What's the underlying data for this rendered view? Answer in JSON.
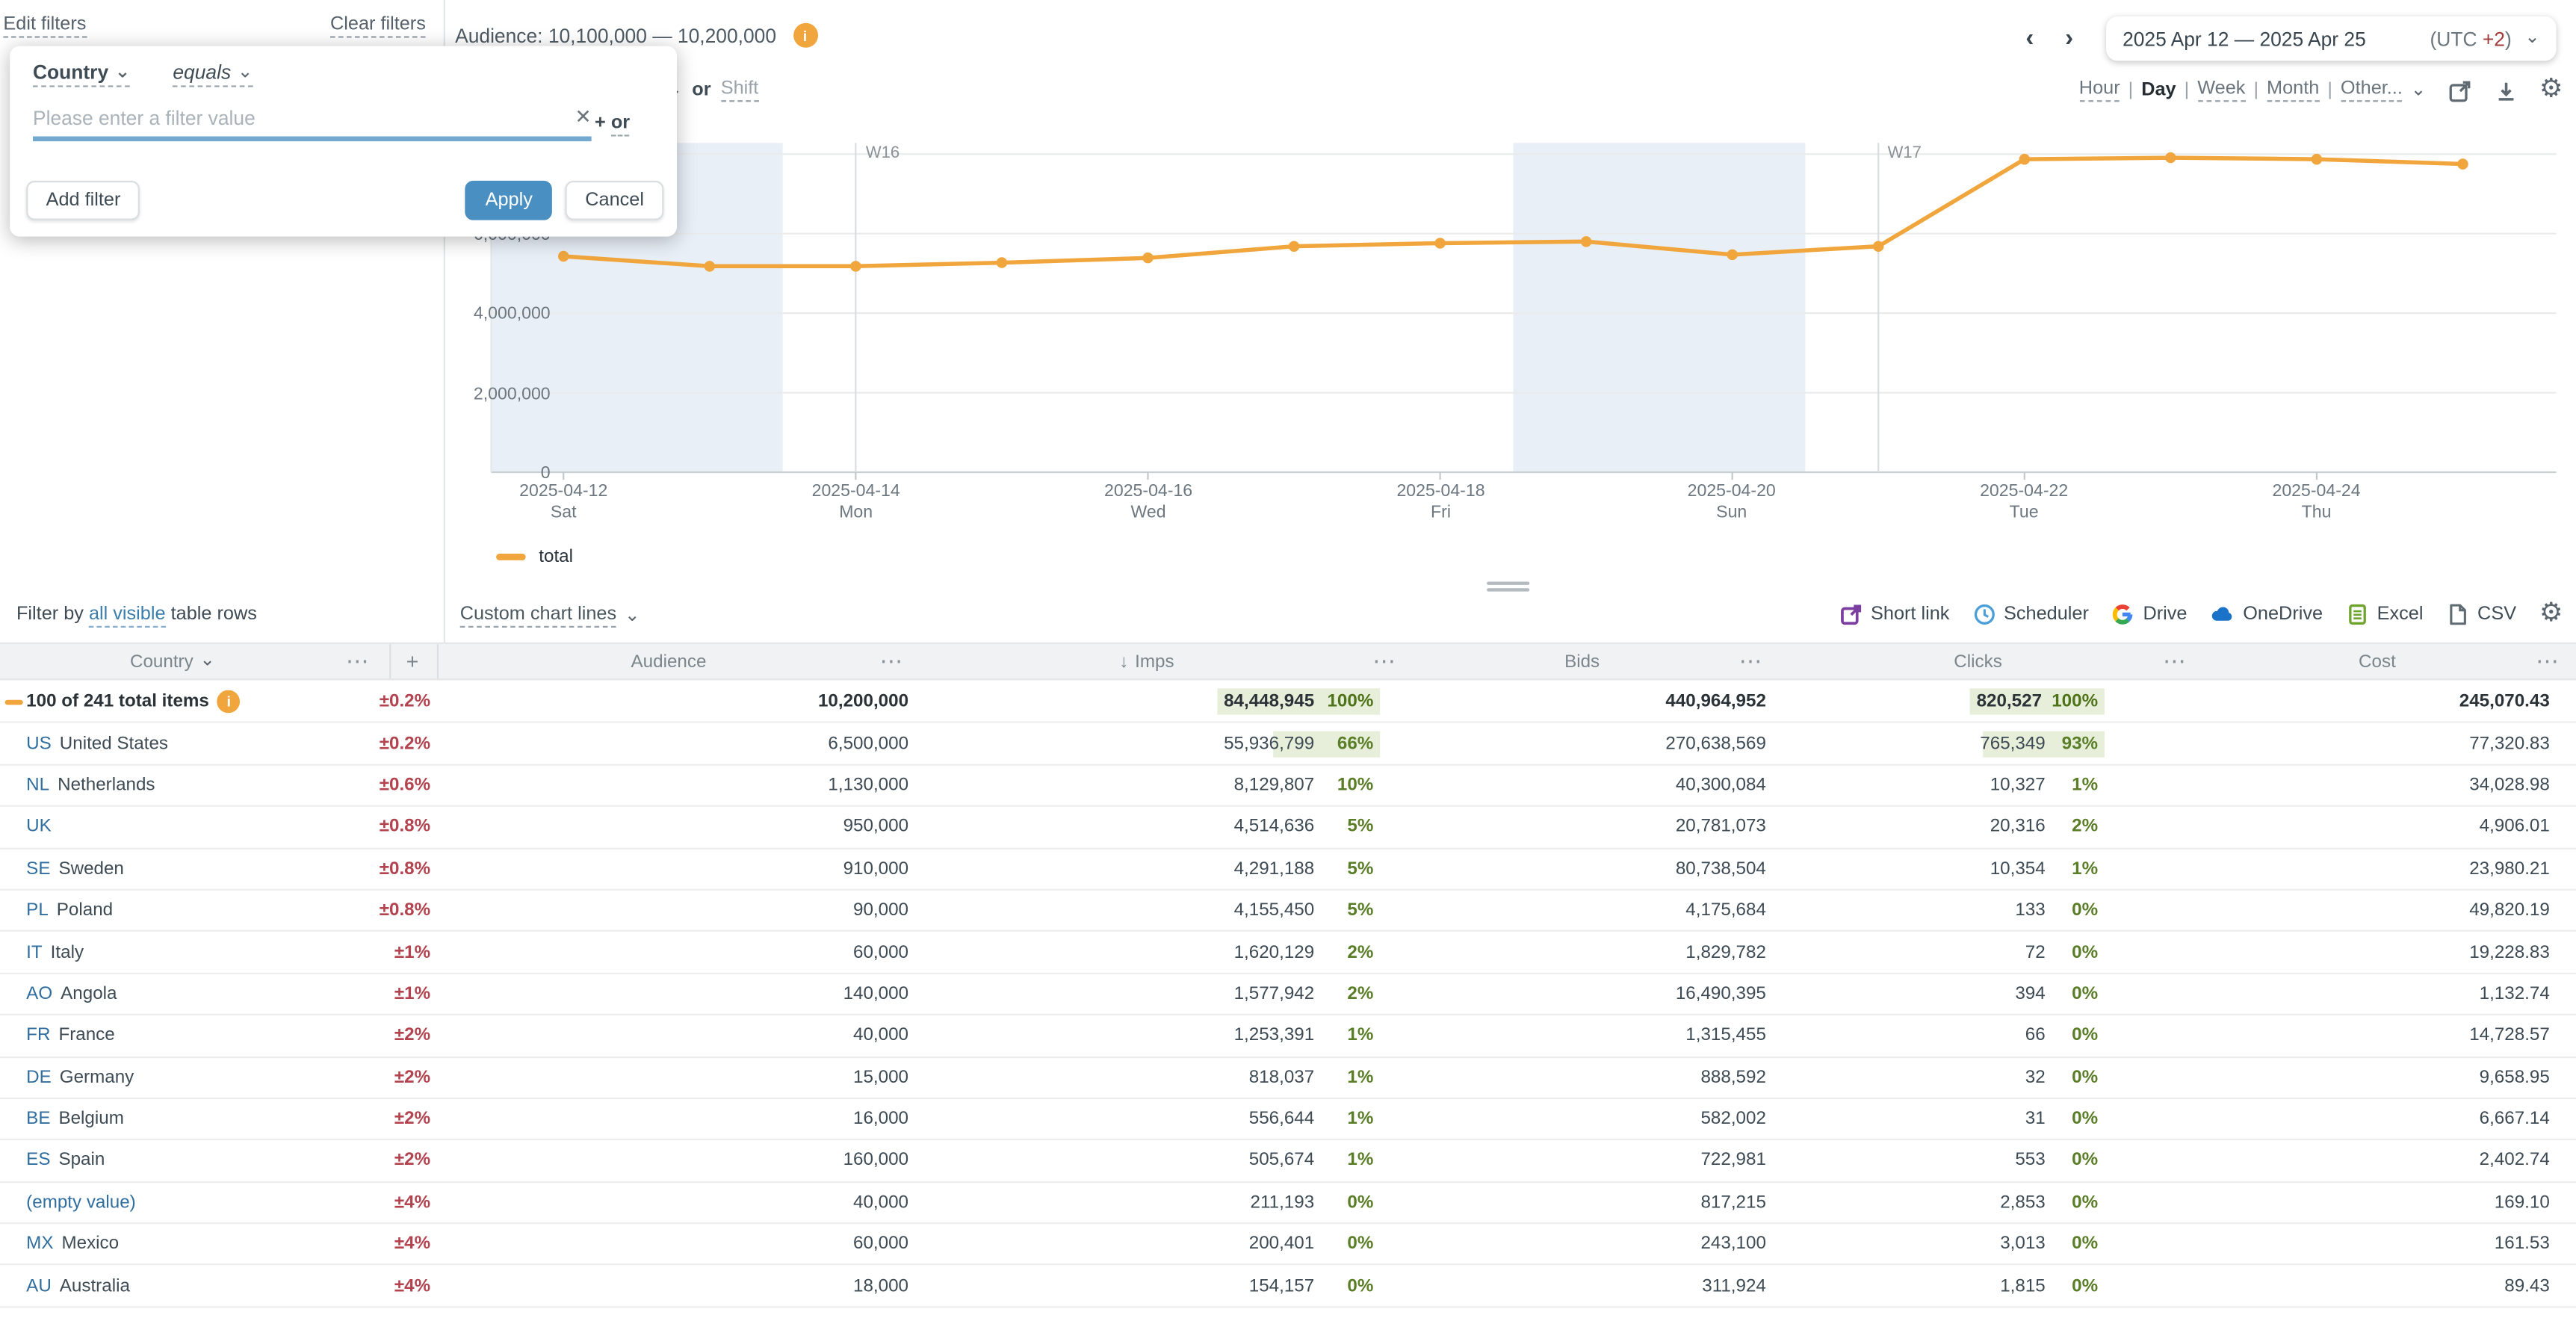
{
  "filter_bar": {
    "edit": "Edit filters",
    "clear": "Clear filters"
  },
  "filter_popup": {
    "field": "Country",
    "operator": "equals",
    "placeholder": "Please enter a filter value",
    "plus_sign": "+",
    "or_word": "or",
    "add": "Add filter",
    "apply": "Apply",
    "cancel": "Cancel",
    "fragment_or": "or",
    "fragment_shift": "Shift"
  },
  "chart_header": {
    "title": "Audience: 10,100,000 — 10,200,000"
  },
  "date_controls": {
    "range": "2025 Apr 12 — 2025 Apr 25",
    "utc_prefix": "(UTC ",
    "utc_offset": "+2",
    "utc_suffix": ")",
    "granularities": [
      "Hour",
      "Day",
      "Week",
      "Month",
      "Other..."
    ],
    "active_granularity": "Day"
  },
  "chart": {
    "y_ticks": [
      "0",
      "2,000,000",
      "4,000,000",
      "6,000,000"
    ],
    "week_labels": [
      "W16",
      "W17"
    ],
    "x_labels": [
      {
        "date": "2025-04-12",
        "day": "Sat"
      },
      {
        "date": "2025-04-14",
        "day": "Mon"
      },
      {
        "date": "2025-04-16",
        "day": "Wed"
      },
      {
        "date": "2025-04-18",
        "day": "Fri"
      },
      {
        "date": "2025-04-20",
        "day": "Sun"
      },
      {
        "date": "2025-04-22",
        "day": "Tue"
      },
      {
        "date": "2025-04-24",
        "day": "Thu"
      }
    ],
    "legend": "total"
  },
  "chart_data": {
    "type": "line",
    "title": "Audience: 10,100,000 — 10,200,000",
    "xlabel": "",
    "ylabel": "",
    "ylim": [
      0,
      8360000
    ],
    "y_gridline_step": 2000000,
    "grid": true,
    "legend_position": "bottom-left",
    "series": [
      {
        "name": "total",
        "color": "#f0a63d",
        "x": [
          "2025-04-12",
          "2025-04-13",
          "2025-04-14",
          "2025-04-15",
          "2025-04-16",
          "2025-04-17",
          "2025-04-18",
          "2025-04-19",
          "2025-04-20",
          "2025-04-21",
          "2025-04-22",
          "2025-04-23",
          "2025-04-24",
          "2025-04-25"
        ],
        "values": [
          5430000,
          5180000,
          5180000,
          5270000,
          5390000,
          5680000,
          5760000,
          5800000,
          5470000,
          5680000,
          7870000,
          7910000,
          7870000,
          7750000
        ]
      }
    ],
    "weekend_bands": [
      [
        "2025-04-12",
        "2025-04-13"
      ],
      [
        "2025-04-19",
        "2025-04-20"
      ]
    ],
    "week_markers": [
      {
        "label": "W16",
        "date": "2025-04-14"
      },
      {
        "label": "W17",
        "date": "2025-04-21"
      }
    ]
  },
  "toolbar": {
    "filter_by_pre": "Filter by ",
    "filter_by_link": "all visible",
    "filter_by_post": " table rows",
    "custom_lines": "Custom chart lines",
    "exports": [
      "Short link",
      "Scheduler",
      "Drive",
      "OneDrive",
      "Excel",
      "CSV"
    ]
  },
  "table": {
    "headers": {
      "country": "Country",
      "audience": "Audience",
      "imps": "Imps",
      "bids": "Bids",
      "clicks": "Clicks",
      "cost": "Cost"
    },
    "rows": [
      {
        "total": true,
        "name": "100 of 241 total items",
        "err": "±0.2%",
        "audience": "10,200,000",
        "imps": "84,448,945",
        "imps_pct": "100%",
        "imps_hl": 100,
        "bids": "440,964,952",
        "clicks": "820,527",
        "clicks_pct": "100%",
        "clicks_hl": 100,
        "cost": "245,070.43"
      },
      {
        "code": "US",
        "name": "United States",
        "err": "±0.2%",
        "audience": "6,500,000",
        "imps": "55,936,799",
        "imps_pct": "66%",
        "imps_hl": 66,
        "bids": "270,638,569",
        "clicks": "765,349",
        "clicks_pct": "93%",
        "clicks_hl": 93,
        "cost": "77,320.83"
      },
      {
        "code": "NL",
        "name": "Netherlands",
        "err": "±0.6%",
        "audience": "1,130,000",
        "imps": "8,129,807",
        "imps_pct": "10%",
        "bids": "40,300,084",
        "clicks": "10,327",
        "clicks_pct": "1%",
        "cost": "34,028.98"
      },
      {
        "code": "UK",
        "name": "",
        "err": "±0.8%",
        "audience": "950,000",
        "imps": "4,514,636",
        "imps_pct": "5%",
        "bids": "20,781,073",
        "clicks": "20,316",
        "clicks_pct": "2%",
        "cost": "4,906.01"
      },
      {
        "code": "SE",
        "name": "Sweden",
        "err": "±0.8%",
        "audience": "910,000",
        "imps": "4,291,188",
        "imps_pct": "5%",
        "bids": "80,738,504",
        "clicks": "10,354",
        "clicks_pct": "1%",
        "cost": "23,980.21"
      },
      {
        "code": "PL",
        "name": "Poland",
        "err": "±0.8%",
        "audience": "90,000",
        "imps": "4,155,450",
        "imps_pct": "5%",
        "bids": "4,175,684",
        "clicks": "133",
        "clicks_pct": "0%",
        "cost": "49,820.19"
      },
      {
        "code": "IT",
        "name": "Italy",
        "err": "±1%",
        "audience": "60,000",
        "imps": "1,620,129",
        "imps_pct": "2%",
        "bids": "1,829,782",
        "clicks": "72",
        "clicks_pct": "0%",
        "cost": "19,228.83"
      },
      {
        "code": "AO",
        "name": "Angola",
        "err": "±1%",
        "audience": "140,000",
        "imps": "1,577,942",
        "imps_pct": "2%",
        "bids": "16,490,395",
        "clicks": "394",
        "clicks_pct": "0%",
        "cost": "1,132.74"
      },
      {
        "code": "FR",
        "name": "France",
        "err": "±2%",
        "audience": "40,000",
        "imps": "1,253,391",
        "imps_pct": "1%",
        "bids": "1,315,455",
        "clicks": "66",
        "clicks_pct": "0%",
        "cost": "14,728.57"
      },
      {
        "code": "DE",
        "name": "Germany",
        "err": "±2%",
        "audience": "15,000",
        "imps": "818,037",
        "imps_pct": "1%",
        "bids": "888,592",
        "clicks": "32",
        "clicks_pct": "0%",
        "cost": "9,658.95"
      },
      {
        "code": "BE",
        "name": "Belgium",
        "err": "±2%",
        "audience": "16,000",
        "imps": "556,644",
        "imps_pct": "1%",
        "bids": "582,002",
        "clicks": "31",
        "clicks_pct": "0%",
        "cost": "6,667.14"
      },
      {
        "code": "ES",
        "name": "Spain",
        "err": "±2%",
        "audience": "160,000",
        "imps": "505,674",
        "imps_pct": "1%",
        "bids": "722,981",
        "clicks": "553",
        "clicks_pct": "0%",
        "cost": "2,402.74"
      },
      {
        "code": "(empty value)",
        "name": "",
        "err": "±4%",
        "audience": "40,000",
        "imps": "211,193",
        "imps_pct": "0%",
        "bids": "817,215",
        "clicks": "2,853",
        "clicks_pct": "0%",
        "cost": "169.10"
      },
      {
        "code": "MX",
        "name": "Mexico",
        "err": "±4%",
        "audience": "60,000",
        "imps": "200,401",
        "imps_pct": "0%",
        "bids": "243,100",
        "clicks": "3,013",
        "clicks_pct": "0%",
        "cost": "161.53"
      },
      {
        "code": "AU",
        "name": "Australia",
        "err": "±4%",
        "audience": "18,000",
        "imps": "154,157",
        "imps_pct": "0%",
        "bids": "311,924",
        "clicks": "1,815",
        "clicks_pct": "0%",
        "cost": "89.43"
      }
    ]
  },
  "icons": {
    "prev": "chevron-left",
    "next": "chevron-right",
    "expand": "chevron-down",
    "menu": "ellipsis",
    "sort": "arrow-down",
    "open": "external-link",
    "download": "download",
    "settings": "gear",
    "short_link": "external-link-square",
    "scheduler": "clock",
    "drive": "google-g",
    "onedrive": "cloud",
    "excel": "spreadsheet",
    "csv": "file",
    "info": "info-circle",
    "clear_input": "x",
    "drag": "drag-handle",
    "total_marker": "series-dash"
  },
  "colors": {
    "accent_orange": "#f0a63d",
    "apply_blue": "#4a8fc2",
    "link_blue": "#2f6e9e",
    "steel_link": "#3b7dab",
    "danger_red": "#b2434f",
    "pct_green": "#5a7e27",
    "pct_chip_bg": "#e7efdb",
    "weekend_band": "#e9eff7",
    "header_bg": "#f1f2f3",
    "utc_red": "#a23b3b"
  }
}
